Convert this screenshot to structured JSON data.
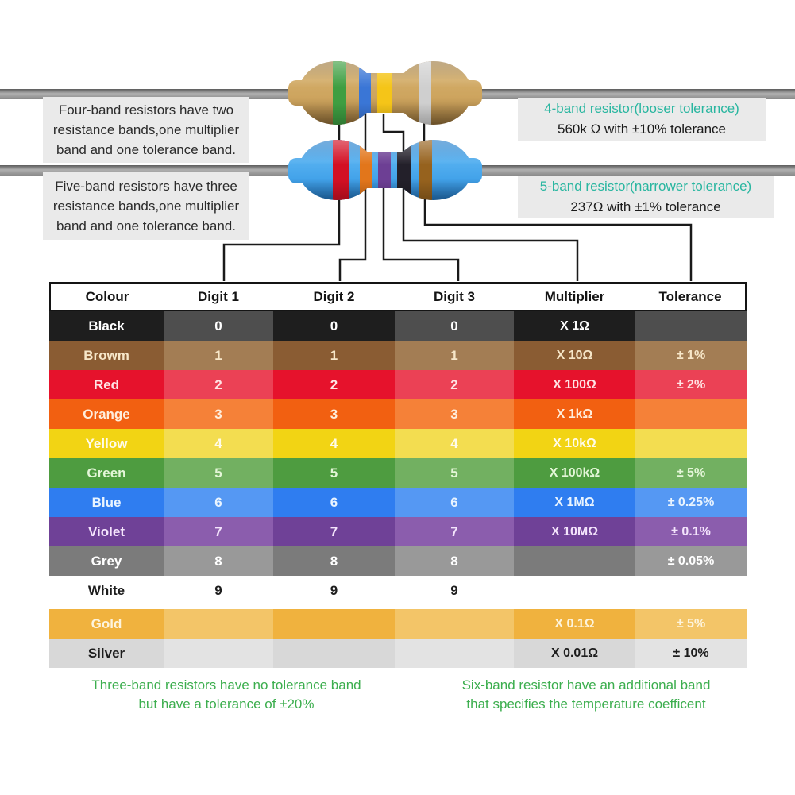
{
  "notes": {
    "four_band": "Four-band resistors have two\nresistance bands,one multiplier\nband and one tolerance band.",
    "five_band": "Five-band resistors have three\nresistance bands,one multiplier\nband and one tolerance band.",
    "three_band": "Three-band resistors have no tolerance band\nbut have a tolerance of ±20%",
    "six_band": "Six-band resistor have an additional band\nthat specifies the temperature coefficent",
    "note_color": "#3cae4e"
  },
  "captions": {
    "r4_title": "4-band resistor(looser tolerance)",
    "r4_value": "560k Ω with ±10% tolerance",
    "r5_title": "5-band resistor(narrower tolerance)",
    "r5_value": "237Ω with ±1% tolerance",
    "title_color": "#29b6a0"
  },
  "resistor_4band": {
    "body": "tan",
    "band_names": [
      "green",
      "blue",
      "yellow",
      "silver"
    ],
    "band_colors": [
      "#3e9e41",
      "#3a76d6",
      "#f5c518",
      "#cfcfcf"
    ]
  },
  "resistor_5band": {
    "body": "blue",
    "band_names": [
      "red",
      "orange",
      "violet",
      "black",
      "brown"
    ],
    "band_colors": [
      "#d31024",
      "#e2761b",
      "#6d3f94",
      "#23202a",
      "#96621e"
    ]
  },
  "table": {
    "headers": [
      "Colour",
      "Digit 1",
      "Digit 2",
      "Digit 3",
      "Multiplier",
      "Tolerance"
    ],
    "rows": [
      {
        "name": "Black",
        "digit1": "0",
        "digit2": "0",
        "digit3": "0",
        "multiplier": "X 1Ω",
        "tolerance": "",
        "color_dark": "#1e1e1e",
        "color_light": "#4e4e4e",
        "text_color": "#ffffff"
      },
      {
        "name": "Browm",
        "digit1": "1",
        "digit2": "1",
        "digit3": "1",
        "multiplier": "X 10Ω",
        "tolerance": "± 1%",
        "color_dark": "#8a5c33",
        "color_light": "#a37d54",
        "text_color": "#f7e7c9"
      },
      {
        "name": "Red",
        "digit1": "2",
        "digit2": "2",
        "digit3": "2",
        "multiplier": "X 100Ω",
        "tolerance": "± 2%",
        "color_dark": "#e6122c",
        "color_light": "#eb4155",
        "text_color": "#ffe4e4"
      },
      {
        "name": "Orange",
        "digit1": "3",
        "digit2": "3",
        "digit3": "3",
        "multiplier": "X 1kΩ",
        "tolerance": "",
        "color_dark": "#f26011",
        "color_light": "#f58138",
        "text_color": "#ffeedd"
      },
      {
        "name": "Yellow",
        "digit1": "4",
        "digit2": "4",
        "digit3": "4",
        "multiplier": "X 10kΩ",
        "tolerance": "",
        "color_dark": "#f2d414",
        "color_light": "#f3dd50",
        "text_color": "#fffbe9"
      },
      {
        "name": "Green",
        "digit1": "5",
        "digit2": "5",
        "digit3": "5",
        "multiplier": "X 100kΩ",
        "tolerance": "± 5%",
        "color_dark": "#4e9c40",
        "color_light": "#72b061",
        "text_color": "#e4f6d8"
      },
      {
        "name": "Blue",
        "digit1": "6",
        "digit2": "6",
        "digit3": "6",
        "multiplier": "X 1MΩ",
        "tolerance": "± 0.25%",
        "color_dark": "#2f7df0",
        "color_light": "#5598f3",
        "text_color": "#e9f4ff"
      },
      {
        "name": "Violet",
        "digit1": "7",
        "digit2": "7",
        "digit3": "7",
        "multiplier": "X 10MΩ",
        "tolerance": "± 0.1%",
        "color_dark": "#6f4197",
        "color_light": "#8b5dad",
        "text_color": "#f4e4fc"
      },
      {
        "name": "Grey",
        "digit1": "8",
        "digit2": "8",
        "digit3": "8",
        "multiplier": "",
        "tolerance": "± 0.05%",
        "color_dark": "#7b7b7b",
        "color_light": "#999999",
        "text_color": "#ffffff"
      },
      {
        "name": "White",
        "digit1": "9",
        "digit2": "9",
        "digit3": "9",
        "multiplier": "",
        "tolerance": "",
        "color_dark": "#ffffff",
        "color_light": "#ffffff",
        "text_color": "#1d1d1d"
      },
      {
        "name": "Gold",
        "digit1": "",
        "digit2": "",
        "digit3": "",
        "multiplier": "X 0.1Ω",
        "tolerance": "± 5%",
        "color_dark": "#f0b23e",
        "color_light": "#f3c568",
        "text_color": "#fdf4dd",
        "gap_before": true
      },
      {
        "name": "Silver",
        "digit1": "",
        "digit2": "",
        "digit3": "",
        "multiplier": "X 0.01Ω",
        "tolerance": "± 10%",
        "color_dark": "#d8d8d8",
        "color_light": "#e3e3e3",
        "text_color": "#1d1d1d"
      }
    ]
  }
}
